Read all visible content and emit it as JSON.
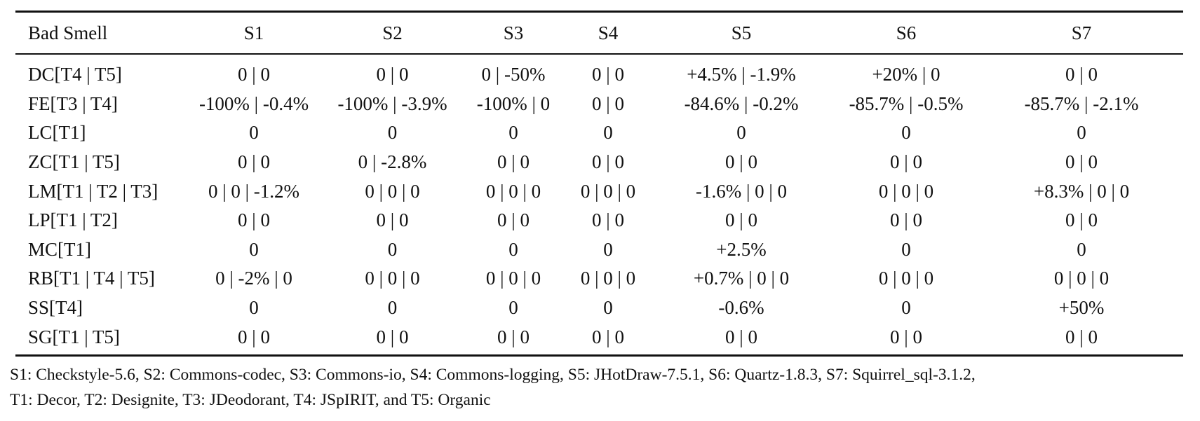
{
  "table": {
    "headers": [
      "Bad Smell",
      "S1",
      "S2",
      "S3",
      "S4",
      "S5",
      "S6",
      "S7"
    ],
    "rows": [
      [
        "DC[T4 | T5]",
        "0 | 0",
        "0 | 0",
        "0 | -50%",
        "0 | 0",
        "+4.5% | -1.9%",
        "+20% | 0",
        "0 | 0"
      ],
      [
        "FE[T3 | T4]",
        "-100% | -0.4%",
        "-100% | -3.9%",
        "-100% | 0",
        "0 | 0",
        "-84.6% | -0.2%",
        "-85.7% | -0.5%",
        "-85.7% | -2.1%"
      ],
      [
        "LC[T1]",
        "0",
        "0",
        "0",
        "0",
        "0",
        "0",
        "0"
      ],
      [
        "ZC[T1 | T5]",
        "0 | 0",
        "0 | -2.8%",
        "0 | 0",
        "0 | 0",
        "0 | 0",
        "0 | 0",
        "0 | 0"
      ],
      [
        "LM[T1 | T2 | T3]",
        "0 | 0 | -1.2%",
        "0 | 0 | 0",
        "0 | 0 | 0",
        "0 | 0 | 0",
        "-1.6% | 0 | 0",
        "0 | 0 | 0",
        "+8.3% | 0 | 0"
      ],
      [
        "LP[T1 | T2]",
        "0 | 0",
        "0 | 0",
        "0 | 0",
        "0 | 0",
        "0 | 0",
        "0 | 0",
        "0 | 0"
      ],
      [
        "MC[T1]",
        "0",
        "0",
        "0",
        "0",
        "+2.5%",
        "0",
        "0"
      ],
      [
        "RB[T1 | T4 | T5]",
        "0 | -2% | 0",
        "0 | 0 | 0",
        "0 | 0 | 0",
        "0 | 0 | 0",
        "+0.7% | 0 | 0",
        "0 | 0 | 0",
        "0 | 0 | 0"
      ],
      [
        "SS[T4]",
        "0",
        "0",
        "0",
        "0",
        "-0.6%",
        "0",
        "+50%"
      ],
      [
        "SG[T1 | T5]",
        "0 | 0",
        "0 | 0",
        "0 | 0",
        "0 | 0",
        "0 | 0",
        "0 | 0",
        "0 | 0"
      ]
    ]
  },
  "caption": {
    "line1": "S1: Checkstyle-5.6, S2: Commons-codec, S3: Commons-io, S4: Commons-logging, S5: JHotDraw-7.5.1, S6: Quartz-1.8.3, S7: Squirrel_sql-3.1.2,",
    "line2": "T1: Decor, T2: Designite, T3: JDeodorant, T4: JSpIRIT, and T5: Organic"
  }
}
